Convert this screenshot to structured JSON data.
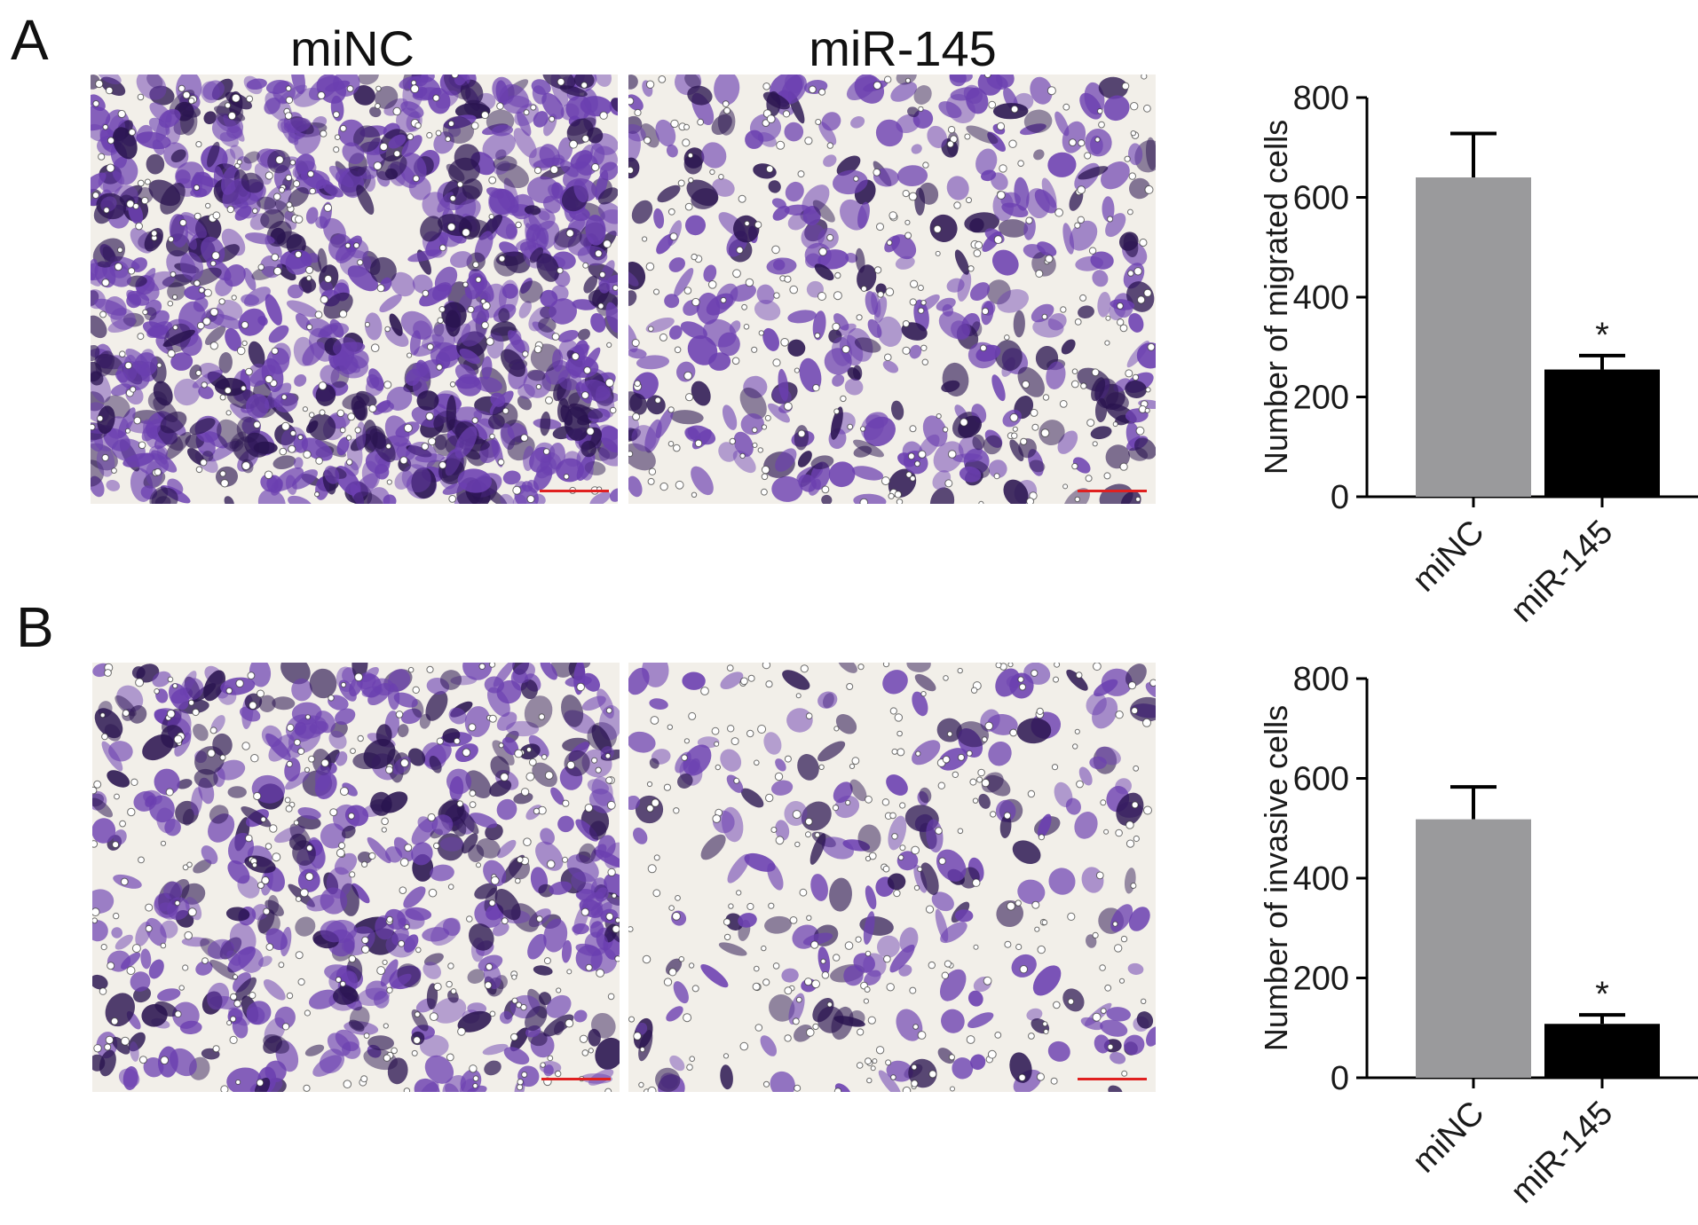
{
  "panels": [
    {
      "letter": "A"
    },
    {
      "letter": "B"
    }
  ],
  "columns": [
    "miNC",
    "miR-145"
  ],
  "micrograph_colors": {
    "stain": "#6b3fb0",
    "dark": "#2a1450",
    "background": "#f2efe9",
    "scale_bar": "#e02020"
  },
  "chart_data": [
    {
      "type": "bar",
      "categories": [
        "miNC",
        "miR-145"
      ],
      "values": [
        640,
        255
      ],
      "errors": [
        88,
        28
      ],
      "significance": [
        "",
        "*"
      ],
      "colors": [
        "#9a9a9c",
        "#000000"
      ],
      "xlabel": "",
      "ylabel": "Number of migrated cells",
      "ylim": [
        0,
        800
      ],
      "yticks": [
        0,
        200,
        400,
        600,
        800
      ]
    },
    {
      "type": "bar",
      "categories": [
        "miNC",
        "miR-145"
      ],
      "values": [
        518,
        108
      ],
      "errors": [
        65,
        18
      ],
      "significance": [
        "",
        "*"
      ],
      "colors": [
        "#9a9a9c",
        "#000000"
      ],
      "xlabel": "",
      "ylabel": "Number of invasive cells",
      "ylim": [
        0,
        800
      ],
      "yticks": [
        0,
        200,
        400,
        600,
        800
      ]
    }
  ]
}
